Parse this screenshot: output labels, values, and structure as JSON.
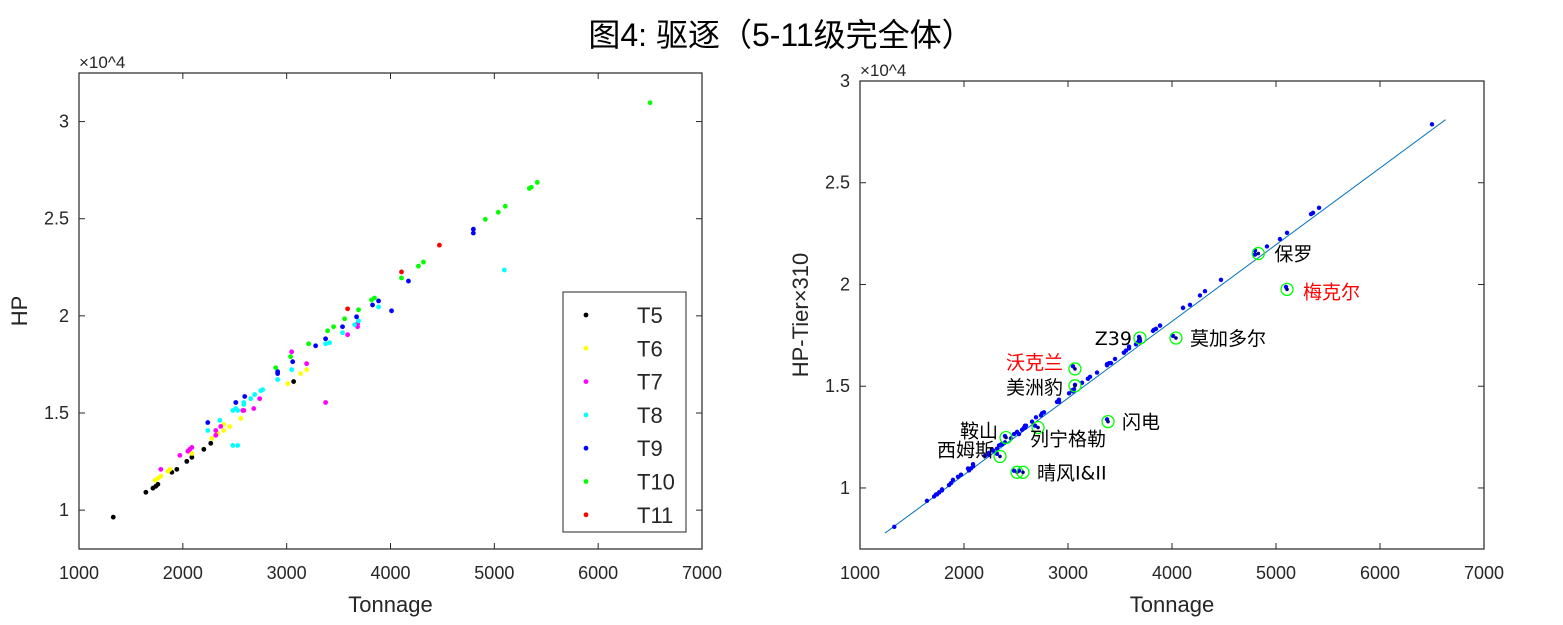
{
  "title": "图4: 驱逐（5-11级完全体）",
  "chart_data": [
    {
      "type": "scatter",
      "xlabel": "Tonnage",
      "ylabel": "HP",
      "y_exponent": "×10^4",
      "xlim": [
        1000,
        7000
      ],
      "ylim": [
        8000,
        32500
      ],
      "xticks": [
        "1000",
        "2000",
        "3000",
        "4000",
        "5000",
        "6000",
        "7000"
      ],
      "yticks": [
        "1",
        "1.5",
        "2",
        "2.5",
        "3"
      ],
      "grid": false,
      "legend_position": "bottom-right",
      "series": [
        {
          "name": "T5",
          "tier": 5,
          "color": "#000000",
          "points": [
            [
              1330,
              9640
            ],
            [
              1644,
              10920
            ],
            [
              1712,
              11130
            ],
            [
              1740,
              11230
            ],
            [
              1760,
              11330
            ],
            [
              1894,
              11950
            ],
            [
              1942,
              12100
            ],
            [
              2038,
              12510
            ],
            [
              2087,
              12720
            ],
            [
              2202,
              13130
            ],
            [
              2269,
              13440
            ],
            [
              3067,
              16620
            ]
          ]
        },
        {
          "name": "T6",
          "tier": 6,
          "color": "#ffff00",
          "points": [
            [
              1731,
              11540
            ],
            [
              1760,
              11640
            ],
            [
              1788,
              11740
            ],
            [
              1856,
              12000
            ],
            [
              1875,
              12100
            ],
            [
              2087,
              12920
            ],
            [
              2279,
              13690
            ],
            [
              2337,
              13950
            ],
            [
              2394,
              14100
            ],
            [
              2394,
              14410
            ],
            [
              2452,
              14300
            ],
            [
              2558,
              14720
            ],
            [
              3010,
              16510
            ],
            [
              3135,
              17030
            ],
            [
              3192,
              17230
            ]
          ]
        },
        {
          "name": "T7",
          "tier": 7,
          "color": "#ff00ff",
          "points": [
            [
              1788,
              12100
            ],
            [
              1971,
              12820
            ],
            [
              2048,
              13030
            ],
            [
              2067,
              13130
            ],
            [
              2087,
              13230
            ],
            [
              2317,
              13850
            ],
            [
              2317,
              14100
            ],
            [
              2365,
              14310
            ],
            [
              2577,
              15130
            ],
            [
              2587,
              15130
            ],
            [
              2683,
              15230
            ],
            [
              2740,
              15740
            ],
            [
              3048,
              18150
            ],
            [
              3192,
              17540
            ],
            [
              3375,
              15540
            ],
            [
              3587,
              19030
            ],
            [
              3683,
              19440
            ],
            [
              3683,
              19590
            ]
          ]
        },
        {
          "name": "T8",
          "tier": 8,
          "color": "#00ffff",
          "points": [
            [
              2240,
              14100
            ],
            [
              2356,
              14620
            ],
            [
              2481,
              13330
            ],
            [
              2529,
              13330
            ],
            [
              2481,
              15130
            ],
            [
              2510,
              15230
            ],
            [
              2529,
              15130
            ],
            [
              2587,
              15440
            ],
            [
              2587,
              15540
            ],
            [
              2654,
              15740
            ],
            [
              2692,
              15950
            ],
            [
              2750,
              16150
            ],
            [
              2769,
              16200
            ],
            [
              2913,
              16720
            ],
            [
              3048,
              17230
            ],
            [
              3375,
              18560
            ],
            [
              3413,
              18620
            ],
            [
              3538,
              19130
            ],
            [
              3654,
              19540
            ],
            [
              3692,
              19740
            ],
            [
              3885,
              20460
            ],
            [
              5096,
              22360
            ]
          ]
        },
        {
          "name": "T9",
          "tier": 9,
          "color": "#0000ff",
          "points": [
            [
              2240,
              14510
            ],
            [
              2510,
              15540
            ],
            [
              2596,
              15850
            ],
            [
              2913,
              17130
            ],
            [
              2913,
              17030
            ],
            [
              3058,
              17640
            ],
            [
              3279,
              18460
            ],
            [
              3375,
              18820
            ],
            [
              3538,
              19440
            ],
            [
              3673,
              19950
            ],
            [
              3827,
              20560
            ],
            [
              3885,
              20770
            ],
            [
              4010,
              20260
            ],
            [
              4173,
              21790
            ],
            [
              4798,
              24460
            ],
            [
              4798,
              24260
            ]
          ]
        },
        {
          "name": "T10",
          "tier": 10,
          "color": "#00ff00",
          "points": [
            [
              2894,
              17330
            ],
            [
              3038,
              17900
            ],
            [
              3212,
              18560
            ],
            [
              3394,
              19230
            ],
            [
              3452,
              19440
            ],
            [
              3558,
              19850
            ],
            [
              3692,
              20310
            ],
            [
              3817,
              20820
            ],
            [
              3846,
              20920
            ],
            [
              4106,
              21950
            ],
            [
              4269,
              22560
            ],
            [
              4317,
              22770
            ],
            [
              4913,
              24970
            ],
            [
              5038,
              25330
            ],
            [
              5106,
              25640
            ],
            [
              5337,
              26560
            ],
            [
              5356,
              26620
            ],
            [
              5414,
              26870
            ],
            [
              6500,
              30970
            ]
          ]
        },
        {
          "name": "T11",
          "tier": 11,
          "color": "#ff0000",
          "points": [
            [
              3587,
              20360
            ],
            [
              4106,
              22260
            ],
            [
              4471,
              23640
            ]
          ]
        }
      ]
    },
    {
      "type": "scatter",
      "xlabel": "Tonnage",
      "ylabel": "HP-Tier×310",
      "y_exponent": "×10^4",
      "xlim": [
        1000,
        7000
      ],
      "ylim": [
        7000,
        30000
      ],
      "xticks": [
        "1000",
        "2000",
        "3000",
        "4000",
        "5000",
        "6000",
        "7000"
      ],
      "yticks": [
        "1",
        "1.5",
        "2",
        "2.5",
        "3"
      ],
      "grid": false,
      "point_color": "#0000ff",
      "fit_line": {
        "color": "#0072bd",
        "points": [
          [
            1240,
            7780
          ],
          [
            6630,
            28100
          ]
        ]
      },
      "highlight_color": "#00ff00",
      "annotations": [
        {
          "label": "保罗",
          "x": 4830,
          "y": 21520,
          "color": "#000000"
        },
        {
          "label": "梅克尔",
          "x": 5106,
          "y": 19760,
          "color": "#ff0000"
        },
        {
          "label": "Z39",
          "x": 3692,
          "y": 17370,
          "color": "#000000"
        },
        {
          "label": "莫加多尔",
          "x": 4038,
          "y": 17370,
          "color": "#000000"
        },
        {
          "label": "沃克兰",
          "x": 3067,
          "y": 15850,
          "color": "#ff0000"
        },
        {
          "label": "美洲豹",
          "x": 3067,
          "y": 15020,
          "color": "#000000"
        },
        {
          "label": "闪电",
          "x": 3385,
          "y": 13260,
          "color": "#000000"
        },
        {
          "label": "列宁格勒",
          "x": 2712,
          "y": 12970,
          "color": "#000000"
        },
        {
          "label": "鞍山",
          "x": 2404,
          "y": 12480,
          "color": "#000000"
        },
        {
          "label": "西姆斯",
          "x": 2346,
          "y": 11550,
          "color": "#000000"
        },
        {
          "label": "晴风I&II",
          "x": 2510,
          "y": 10770,
          "color": "#000000",
          "extra_points": [
            [
              2567,
              10770
            ]
          ]
        }
      ]
    }
  ]
}
